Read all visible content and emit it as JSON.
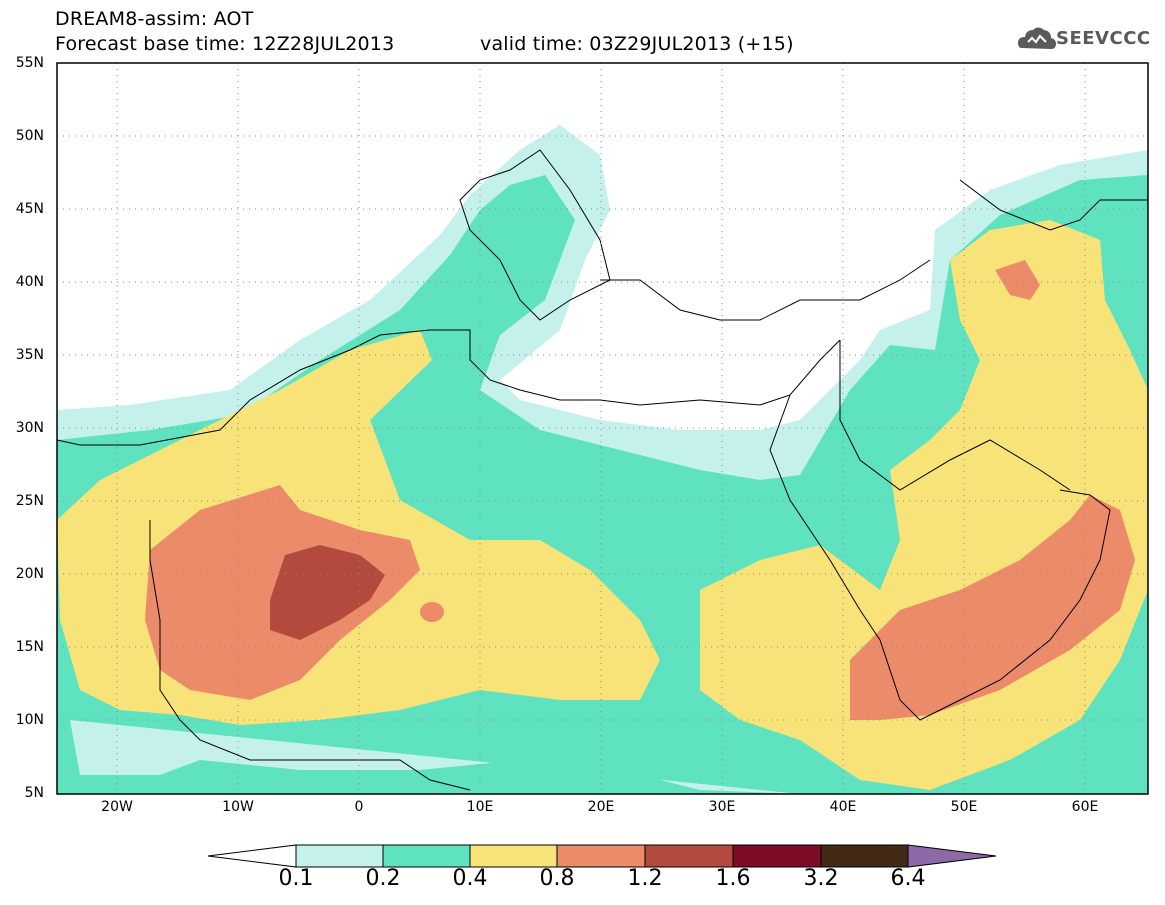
{
  "title": {
    "line1": "DREAM8-assim: AOT",
    "line2": "Forecast base time: 12Z28JUL2013",
    "line3": "valid time: 03Z29JUL2013 (+15)"
  },
  "logo": {
    "text": "SEEVCCC",
    "icon": "cloud-icon"
  },
  "map": {
    "lat_labels": [
      "55N",
      "50N",
      "45N",
      "40N",
      "35N",
      "30N",
      "25N",
      "20N",
      "15N",
      "10N",
      "5N"
    ],
    "lon_labels": [
      "20W",
      "10W",
      "0",
      "10E",
      "20E",
      "30E",
      "40E",
      "50E",
      "60E"
    ],
    "lat_range": [
      5,
      55
    ],
    "lon_range": [
      -25,
      65
    ],
    "gridlines": "dotted"
  },
  "colorbar": {
    "labels": [
      "0.1",
      "0.2",
      "0.4",
      "0.8",
      "1.2",
      "1.6",
      "3.2",
      "6.4"
    ],
    "colors": [
      "#ffffff",
      "#c4f1ec",
      "#5ee2c0",
      "#f7e377",
      "#ec8b69",
      "#b24b3e",
      "#7e0c27",
      "#422a17",
      "#8d6aa7"
    ]
  }
}
